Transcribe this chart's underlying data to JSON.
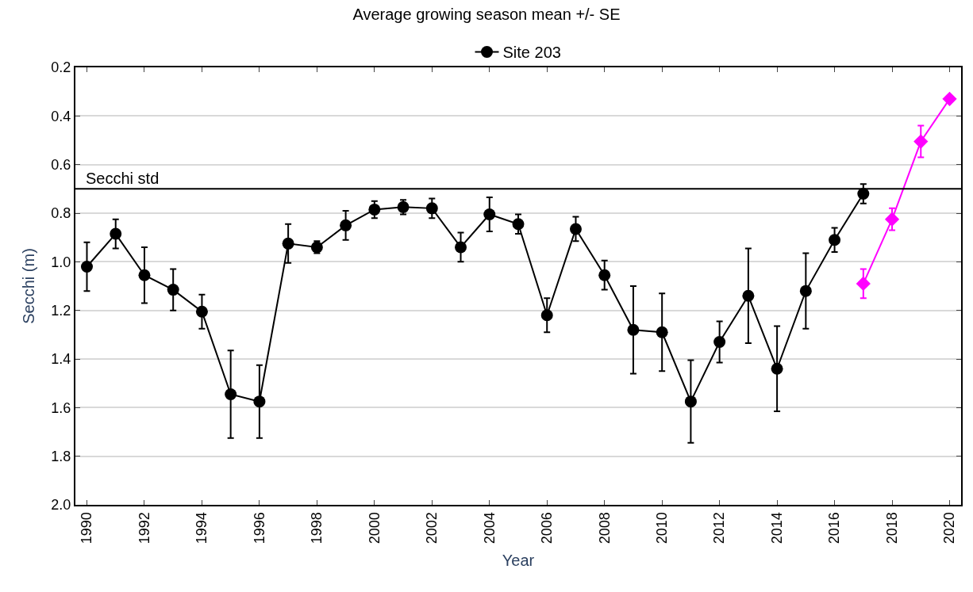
{
  "chart_data": {
    "type": "line",
    "title": "Average growing season mean +/- SE",
    "xlabel": "Year",
    "ylabel": "Secchi (m)",
    "series": [
      {
        "name": "Site 203",
        "color": "#000000",
        "marker": "circle",
        "x": [
          1990,
          1991,
          1992,
          1993,
          1994,
          1995,
          1996,
          1997,
          1998,
          1999,
          2000,
          2001,
          2002,
          2003,
          2004,
          2005,
          2006,
          2007,
          2008,
          2009,
          2010,
          2011,
          2012,
          2013,
          2014,
          2015,
          2016,
          2017
        ],
        "values": [
          1.02,
          0.885,
          1.055,
          1.115,
          1.205,
          1.545,
          1.575,
          0.925,
          0.94,
          0.85,
          0.785,
          0.775,
          0.78,
          0.94,
          0.805,
          0.845,
          1.22,
          0.865,
          1.055,
          1.28,
          1.29,
          1.575,
          1.33,
          1.14,
          1.44,
          1.12,
          0.91,
          0.72
        ],
        "errors": [
          0.1,
          0.06,
          0.115,
          0.085,
          0.07,
          0.18,
          0.15,
          0.08,
          0.025,
          0.06,
          0.035,
          0.03,
          0.04,
          0.06,
          0.07,
          0.04,
          0.07,
          0.05,
          0.06,
          0.18,
          0.16,
          0.17,
          0.085,
          0.195,
          0.175,
          0.155,
          0.05,
          0.04
        ]
      },
      {
        "color": "#ff00ff",
        "marker": "diamond",
        "x": [
          2017,
          2018,
          2019,
          2020
        ],
        "values": [
          1.09,
          0.825,
          0.505,
          0.33
        ],
        "errors": [
          0.06,
          0.045,
          0.065,
          null
        ]
      }
    ],
    "xlim": [
      1989.6,
      2020.4
    ],
    "xticks": [
      1990,
      1992,
      1994,
      1996,
      1998,
      2000,
      2002,
      2004,
      2006,
      2008,
      2010,
      2012,
      2014,
      2016,
      2018,
      2020
    ],
    "ylim": [
      2.0,
      0.2
    ],
    "yticks": [
      {
        "value": 2.0,
        "label": "2.0"
      },
      {
        "value": 1.8,
        "label": "1.8"
      },
      {
        "value": 1.6,
        "label": "1.6"
      },
      {
        "value": 1.4,
        "label": "1.4"
      },
      {
        "value": 1.2,
        "label": "1.2"
      },
      {
        "value": 1.0,
        "label": "1.0"
      },
      {
        "value": 0.8,
        "label": "0.8"
      },
      {
        "value": 0.6,
        "label": "0.6"
      },
      {
        "value": 0.4,
        "label": "0.4"
      },
      {
        "value": 0.2,
        "label": "0.2"
      }
    ],
    "ref_lines": [
      {
        "axis": "y",
        "value": 0.7,
        "label": "Secchi std",
        "color": "#000000"
      }
    ],
    "grid": "y",
    "legend": "top"
  }
}
